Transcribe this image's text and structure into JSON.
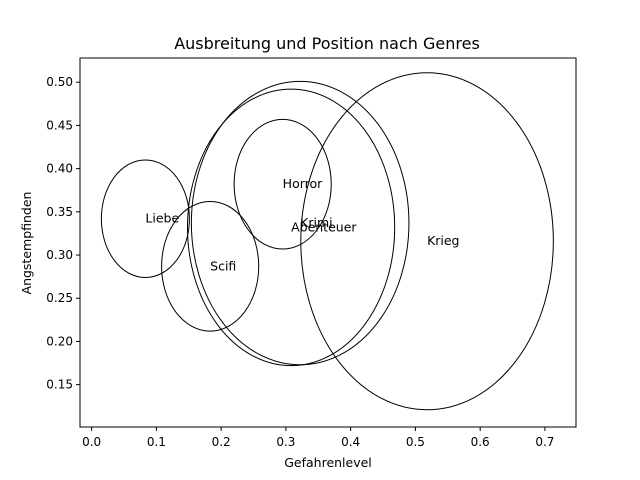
{
  "chart_data": {
    "type": "scatter",
    "title": "Ausbreitung und Position nach Genres",
    "xlabel": "Gefahrenlevel",
    "ylabel": "Angstempfinden",
    "xlim": [
      -0.018,
      0.748
    ],
    "ylim": [
      0.101,
      0.528
    ],
    "xticks": [
      0.0,
      0.1,
      0.2,
      0.3,
      0.4,
      0.5,
      0.6,
      0.7
    ],
    "yticks": [
      0.15,
      0.2,
      0.25,
      0.3,
      0.35,
      0.4,
      0.45,
      0.5
    ],
    "grid": false,
    "legend": "none",
    "colors": {
      "ellipse_stroke": "#000000",
      "background": "#ffffff"
    },
    "genres": [
      {
        "name": "Liebe",
        "x": 0.083,
        "y": 0.342,
        "x_spread": 0.068,
        "y_spread": 0.068
      },
      {
        "name": "Scifi",
        "x": 0.183,
        "y": 0.287,
        "x_spread": 0.075,
        "y_spread": 0.075
      },
      {
        "name": "Horror",
        "x": 0.295,
        "y": 0.382,
        "x_spread": 0.075,
        "y_spread": 0.075
      },
      {
        "name": "Krimi",
        "x": 0.322,
        "y": 0.337,
        "x_spread": 0.168,
        "y_spread": 0.164
      },
      {
        "name": "Abenteuer",
        "x": 0.308,
        "y": 0.332,
        "x_spread": 0.16,
        "y_spread": 0.16
      },
      {
        "name": "Krieg",
        "x": 0.518,
        "y": 0.316,
        "x_spread": 0.195,
        "y_spread": 0.195
      }
    ]
  }
}
